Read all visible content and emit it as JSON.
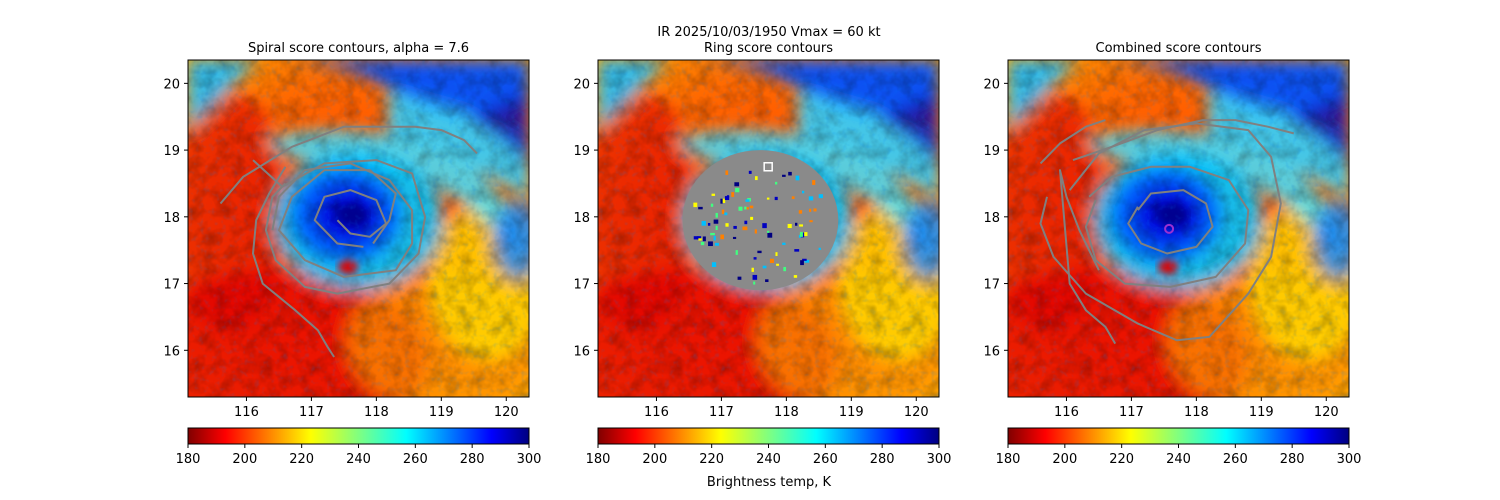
{
  "figure": {
    "suptitle_line1": "IR  2025/10/03/1950    Vmax = 60 kt",
    "colorbar_label": "Brightness temp, K"
  },
  "colors": {
    "contour": "#808080",
    "marker_ring": "#ffffff",
    "marker_combined": "#9b30d0"
  },
  "chart_data": [
    {
      "type": "heatmap",
      "title": "Spiral score contours, alpha =  7.6",
      "xlim": [
        115.1,
        120.35
      ],
      "ylim": [
        15.3,
        20.35
      ],
      "xticks": [
        116,
        117,
        118,
        119,
        120
      ],
      "yticks": [
        16,
        17,
        18,
        19,
        20
      ],
      "center": [
        117.25,
        18.05
      ],
      "colorbar": {
        "cmap": "jet_r",
        "range": [
          180,
          300
        ],
        "ticks": [
          180,
          200,
          220,
          240,
          260,
          280,
          300
        ]
      },
      "contours": [
        [
          [
            117.4,
            17.95
          ],
          [
            117.6,
            17.75
          ],
          [
            117.9,
            17.7
          ],
          [
            118.15,
            17.9
          ],
          [
            118.0,
            18.25
          ],
          [
            117.6,
            18.4
          ],
          [
            117.2,
            18.3
          ],
          [
            117.05,
            17.95
          ],
          [
            117.4,
            17.6
          ],
          [
            117.8,
            17.55
          ]
        ],
        [
          [
            117.95,
            17.6
          ],
          [
            118.2,
            17.95
          ],
          [
            118.3,
            18.35
          ],
          [
            117.9,
            18.7
          ],
          [
            117.2,
            18.7
          ],
          [
            116.7,
            18.3
          ],
          [
            116.5,
            17.8
          ],
          [
            116.9,
            17.35
          ],
          [
            117.5,
            17.1
          ],
          [
            118.3,
            17.2
          ],
          [
            118.55,
            17.6
          ],
          [
            118.55,
            18.1
          ],
          [
            118.2,
            18.55
          ],
          [
            117.6,
            18.8
          ],
          [
            116.9,
            18.7
          ],
          [
            116.5,
            18.3
          ],
          [
            116.4,
            17.8
          ]
        ],
        [
          [
            115.6,
            18.2
          ],
          [
            115.95,
            18.6
          ],
          [
            116.7,
            19.05
          ],
          [
            117.5,
            19.35
          ],
          [
            118.6,
            19.35
          ],
          [
            119.0,
            19.3
          ],
          [
            119.35,
            19.15
          ],
          [
            119.55,
            18.95
          ]
        ],
        [
          [
            116.1,
            18.85
          ],
          [
            116.55,
            18.45
          ],
          [
            117.2,
            18.8
          ],
          [
            118.0,
            18.85
          ],
          [
            118.55,
            18.65
          ],
          [
            118.75,
            18.0
          ],
          [
            118.65,
            17.45
          ],
          [
            118.2,
            17.0
          ],
          [
            117.4,
            16.85
          ],
          [
            116.9,
            16.95
          ],
          [
            116.45,
            17.35
          ],
          [
            116.3,
            17.8
          ],
          [
            116.4,
            18.3
          ],
          [
            116.6,
            18.5
          ]
        ],
        [
          [
            116.6,
            18.75
          ],
          [
            116.35,
            18.35
          ],
          [
            116.15,
            17.95
          ],
          [
            116.1,
            17.45
          ],
          [
            116.25,
            17.0
          ],
          [
            116.75,
            16.6
          ],
          [
            117.1,
            16.3
          ],
          [
            117.25,
            16.05
          ],
          [
            117.35,
            15.9
          ]
        ]
      ]
    },
    {
      "type": "heatmap",
      "title": "Ring score contours",
      "xlim": [
        115.1,
        120.35
      ],
      "ylim": [
        15.3,
        20.35
      ],
      "xticks": [
        116,
        117,
        118,
        119,
        120
      ],
      "yticks": [
        16,
        17,
        18,
        19,
        20
      ],
      "center": [
        117.25,
        18.05
      ],
      "colorbar": {
        "cmap": "jet_r",
        "range": [
          180,
          300
        ],
        "ticks": [
          180,
          200,
          220,
          240,
          260,
          280,
          300
        ]
      },
      "score_region": {
        "center": [
          117.6,
          17.95
        ],
        "radius_x": 1.2,
        "radius_y": 1.05
      },
      "marker": {
        "shape": "square",
        "lon": 117.72,
        "lat": 18.75
      },
      "contours": []
    },
    {
      "type": "heatmap",
      "title": "Combined score contours",
      "xlim": [
        115.1,
        120.35
      ],
      "ylim": [
        15.3,
        20.35
      ],
      "xticks": [
        116,
        117,
        118,
        119,
        120
      ],
      "yticks": [
        16,
        17,
        18,
        19,
        20
      ],
      "center": [
        117.25,
        18.05
      ],
      "colorbar": {
        "cmap": "jet_r",
        "range": [
          180,
          300
        ],
        "ticks": [
          180,
          200,
          220,
          240,
          260,
          280,
          300
        ]
      },
      "marker": {
        "shape": "circle",
        "lon": 117.58,
        "lat": 17.82
      },
      "contours": [
        [
          [
            117.1,
            18.1
          ],
          [
            117.3,
            18.35
          ],
          [
            117.8,
            18.4
          ],
          [
            118.15,
            18.2
          ],
          [
            118.25,
            17.85
          ],
          [
            118.0,
            17.55
          ],
          [
            117.55,
            17.45
          ],
          [
            117.15,
            17.6
          ],
          [
            116.95,
            17.9
          ],
          [
            117.1,
            18.15
          ]
        ],
        [
          [
            116.35,
            18.3
          ],
          [
            116.7,
            18.6
          ],
          [
            117.3,
            18.75
          ],
          [
            117.9,
            18.75
          ],
          [
            118.5,
            18.55
          ],
          [
            118.8,
            18.1
          ],
          [
            118.75,
            17.6
          ],
          [
            118.3,
            17.1
          ],
          [
            117.6,
            16.95
          ],
          [
            116.9,
            17.0
          ],
          [
            116.45,
            17.35
          ],
          [
            116.3,
            17.85
          ],
          [
            116.45,
            18.25
          ]
        ],
        [
          [
            115.6,
            18.8
          ],
          [
            115.9,
            19.1
          ],
          [
            116.3,
            19.35
          ],
          [
            116.6,
            19.45
          ]
        ],
        [
          [
            116.05,
            18.4
          ],
          [
            116.5,
            18.95
          ],
          [
            117.2,
            19.3
          ],
          [
            118.0,
            19.4
          ],
          [
            118.8,
            19.3
          ],
          [
            119.15,
            18.9
          ],
          [
            119.3,
            18.2
          ],
          [
            119.15,
            17.4
          ],
          [
            118.8,
            16.85
          ],
          [
            118.2,
            16.2
          ],
          [
            117.7,
            16.15
          ],
          [
            117.1,
            16.4
          ],
          [
            116.3,
            16.85
          ],
          [
            115.8,
            17.4
          ],
          [
            115.6,
            17.9
          ],
          [
            115.7,
            18.3
          ]
        ],
        [
          [
            116.1,
            18.85
          ],
          [
            116.7,
            19.05
          ],
          [
            117.4,
            19.3
          ],
          [
            118.1,
            19.45
          ],
          [
            118.6,
            19.45
          ],
          [
            119.1,
            19.35
          ],
          [
            119.5,
            19.25
          ]
        ],
        [
          [
            116.5,
            17.2
          ],
          [
            116.2,
            17.8
          ],
          [
            116.0,
            18.3
          ],
          [
            115.9,
            18.7
          ],
          [
            116.05,
            17.0
          ],
          [
            116.3,
            16.6
          ],
          [
            116.6,
            16.35
          ],
          [
            116.75,
            16.1
          ]
        ]
      ]
    }
  ]
}
